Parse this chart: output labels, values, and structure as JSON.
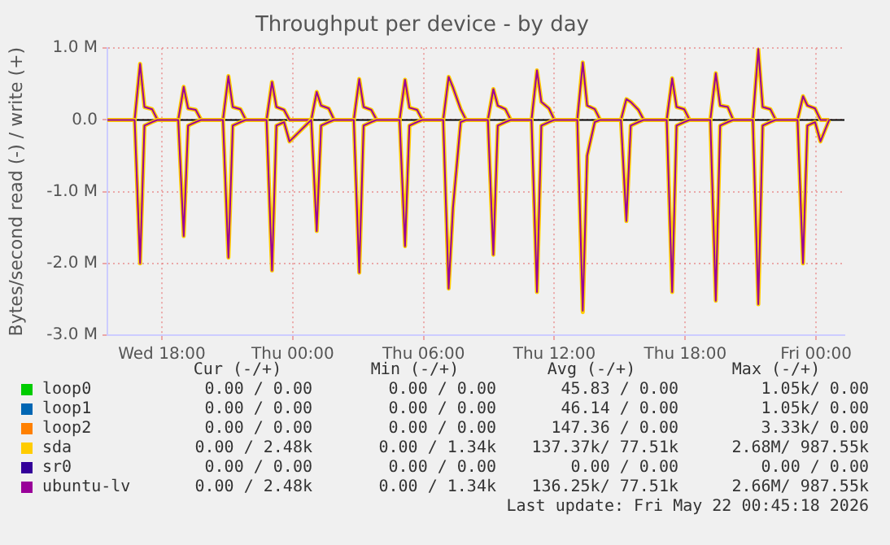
{
  "chart_data": {
    "type": "line",
    "title": "Throughput per device - by day",
    "ylabel": "Bytes/second read (-) / write (+)",
    "x": [
      "2026-05-20T15:30",
      "2026-05-20T16:45",
      "2026-05-20T17:00",
      "2026-05-20T17:12",
      "2026-05-20T17:33",
      "2026-05-20T17:48",
      "2026-05-20T18:45",
      "2026-05-20T19:00",
      "2026-05-20T19:12",
      "2026-05-20T19:33",
      "2026-05-20T19:48",
      "2026-05-20T20:48",
      "2026-05-20T21:03",
      "2026-05-20T21:15",
      "2026-05-20T21:36",
      "2026-05-20T21:51",
      "2026-05-20T22:48",
      "2026-05-20T23:03",
      "2026-05-20T23:15",
      "2026-05-20T23:36",
      "2026-05-20T23:51",
      "2026-05-21T00:51",
      "2026-05-21T01:06",
      "2026-05-21T01:18",
      "2026-05-21T01:39",
      "2026-05-21T01:54",
      "2026-05-21T02:48",
      "2026-05-21T03:03",
      "2026-05-21T03:15",
      "2026-05-21T03:36",
      "2026-05-21T03:51",
      "2026-05-21T04:54",
      "2026-05-21T05:09",
      "2026-05-21T05:21",
      "2026-05-21T05:42",
      "2026-05-21T05:57",
      "2026-05-21T06:54",
      "2026-05-21T07:09",
      "2026-05-21T07:21",
      "2026-05-21T07:42",
      "2026-05-21T07:57",
      "2026-05-21T08:57",
      "2026-05-21T09:12",
      "2026-05-21T09:24",
      "2026-05-21T09:45",
      "2026-05-21T10:00",
      "2026-05-21T10:57",
      "2026-05-21T11:12",
      "2026-05-21T11:24",
      "2026-05-21T11:45",
      "2026-05-21T12:00",
      "2026-05-21T13:03",
      "2026-05-21T13:18",
      "2026-05-21T13:30",
      "2026-05-21T13:51",
      "2026-05-21T14:06",
      "2026-05-21T15:03",
      "2026-05-21T15:18",
      "2026-05-21T15:30",
      "2026-05-21T15:51",
      "2026-05-21T16:06",
      "2026-05-21T17:09",
      "2026-05-21T17:24",
      "2026-05-21T17:36",
      "2026-05-21T17:57",
      "2026-05-21T18:12",
      "2026-05-21T19:09",
      "2026-05-21T19:24",
      "2026-05-21T19:36",
      "2026-05-21T19:57",
      "2026-05-21T20:12",
      "2026-05-21T21:06",
      "2026-05-21T21:21",
      "2026-05-21T21:33",
      "2026-05-21T21:54",
      "2026-05-21T22:09",
      "2026-05-21T23:09",
      "2026-05-21T23:24",
      "2026-05-21T23:36",
      "2026-05-21T23:57",
      "2026-05-22T00:12",
      "2026-05-22T00:36"
    ],
    "xlim": [
      "2026-05-20T15:30",
      "2026-05-22T01:18"
    ],
    "xticks": [
      {
        "value": "2026-05-20T18:00",
        "label": "Wed 18:00"
      },
      {
        "value": "2026-05-21T00:00",
        "label": "Thu 00:00"
      },
      {
        "value": "2026-05-21T06:00",
        "label": "Thu 06:00"
      },
      {
        "value": "2026-05-21T12:00",
        "label": "Thu 12:00"
      },
      {
        "value": "2026-05-21T18:00",
        "label": "Thu 18:00"
      },
      {
        "value": "2026-05-22T00:00",
        "label": "Fri 00:00"
      }
    ],
    "ylim": [
      -3,
      1
    ],
    "yticks": [
      {
        "value": -3,
        "label": "-3.0 M"
      },
      {
        "value": -2,
        "label": "-2.0 M"
      },
      {
        "value": -1,
        "label": "-1.0 M"
      },
      {
        "value": 0,
        "label": "0.0"
      },
      {
        "value": 1,
        "label": "1.0 M"
      }
    ],
    "grid": true,
    "legend": "bottom",
    "marker": "none",
    "ref_lines": [
      {
        "axis": "y",
        "value": 0,
        "color": "#000000"
      }
    ],
    "series": [
      {
        "name": "loop0",
        "color": "#00cc00",
        "values": [
          null,
          null,
          null,
          null,
          null,
          null,
          null,
          null,
          null,
          null,
          null,
          null,
          null,
          null,
          null,
          null,
          null,
          null,
          null,
          null,
          null,
          null,
          null,
          null,
          null,
          null,
          null,
          null,
          null,
          null,
          null,
          null,
          null,
          null,
          null,
          null,
          null,
          null,
          null,
          null,
          null,
          null,
          null,
          null,
          null,
          null,
          null,
          null,
          null,
          null,
          null,
          null,
          null,
          null,
          null,
          null,
          null,
          null,
          null,
          null,
          null,
          null,
          null,
          null,
          null,
          null,
          null,
          null,
          null,
          null,
          null,
          null,
          null,
          null,
          null,
          null,
          null,
          null,
          null,
          null,
          null,
          null
        ]
      },
      {
        "name": "loop1",
        "color": "#0066b3",
        "values": [
          null,
          null,
          null,
          null,
          null,
          null,
          null,
          null,
          null,
          null,
          null,
          null,
          null,
          null,
          null,
          null,
          null,
          null,
          null,
          null,
          null,
          null,
          null,
          null,
          null,
          null,
          null,
          null,
          null,
          null,
          null,
          null,
          null,
          null,
          null,
          null,
          null,
          null,
          null,
          null,
          null,
          null,
          null,
          null,
          null,
          null,
          null,
          null,
          null,
          null,
          null,
          null,
          null,
          null,
          null,
          null,
          null,
          null,
          null,
          null,
          null,
          null,
          null,
          null,
          null,
          null,
          null,
          null,
          null,
          null,
          null,
          null,
          null,
          null,
          null,
          null,
          null,
          null,
          null,
          null,
          null,
          null
        ]
      },
      {
        "name": "loop2",
        "color": "#ff8000",
        "values": [
          null,
          null,
          null,
          null,
          null,
          null,
          null,
          null,
          null,
          null,
          null,
          null,
          null,
          null,
          null,
          null,
          null,
          null,
          null,
          null,
          null,
          null,
          null,
          null,
          null,
          null,
          null,
          null,
          null,
          null,
          null,
          null,
          null,
          null,
          null,
          null,
          null,
          null,
          null,
          null,
          null,
          null,
          null,
          null,
          null,
          null,
          null,
          null,
          null,
          null,
          null,
          null,
          null,
          null,
          null,
          null,
          null,
          null,
          null,
          null,
          null,
          null,
          null,
          null,
          null,
          null,
          null,
          null,
          null,
          null,
          null,
          null,
          null,
          null,
          null,
          null,
          null,
          null,
          null,
          null,
          null,
          null
        ]
      },
      {
        "name": "sda",
        "color": "#ffcc00",
        "values": [
          0,
          0,
          0.78,
          0.18,
          0.15,
          0,
          0,
          0.46,
          0.16,
          0.14,
          0,
          0,
          0.61,
          0.18,
          0.15,
          0,
          0,
          0.53,
          0.18,
          0.14,
          0,
          0,
          0.39,
          0.2,
          0.16,
          0,
          0,
          0.57,
          0.18,
          0.14,
          0,
          0,
          0.56,
          0.17,
          0.14,
          0,
          0,
          0.6,
          0.45,
          0.15,
          0,
          0,
          0.43,
          0.2,
          0.15,
          0,
          0,
          0.69,
          0.25,
          0.16,
          0,
          0,
          0.8,
          0.2,
          0.15,
          0,
          0,
          0.29,
          0.25,
          0.14,
          0,
          0,
          0.58,
          0.18,
          0.15,
          0,
          0,
          0.65,
          0.2,
          0.18,
          0,
          0,
          0.99,
          0.18,
          0.15,
          0,
          0,
          0.33,
          0.2,
          0.16,
          0,
          0
        ]
      },
      {
        "name": "sr0",
        "color": "#330099",
        "values": [
          null,
          null,
          null,
          null,
          null,
          null,
          null,
          null,
          null,
          null,
          null,
          null,
          null,
          null,
          null,
          null,
          null,
          null,
          null,
          null,
          null,
          null,
          null,
          null,
          null,
          null,
          null,
          null,
          null,
          null,
          null,
          null,
          null,
          null,
          null,
          null,
          null,
          null,
          null,
          null,
          null,
          null,
          null,
          null,
          null,
          null,
          null,
          null,
          null,
          null,
          null,
          null,
          null,
          null,
          null,
          null,
          null,
          null,
          null,
          null,
          null,
          null,
          null,
          null,
          null,
          null,
          null,
          null,
          null,
          null,
          null,
          null,
          null,
          null,
          null,
          null,
          null,
          null,
          null,
          null,
          null,
          null
        ]
      },
      {
        "name": "ubuntu-lv",
        "color": "#990099",
        "values": [
          0,
          0,
          0.78,
          0.18,
          0.15,
          0,
          0,
          0.46,
          0.16,
          0.14,
          0,
          0,
          0.61,
          0.18,
          0.15,
          0,
          0,
          0.53,
          0.18,
          0.14,
          0,
          0,
          0.39,
          0.2,
          0.16,
          0,
          0,
          0.57,
          0.18,
          0.14,
          0,
          0,
          0.56,
          0.17,
          0.14,
          0,
          0,
          0.6,
          0.45,
          0.15,
          0,
          0,
          0.43,
          0.2,
          0.15,
          0,
          0,
          0.69,
          0.25,
          0.16,
          0,
          0,
          0.8,
          0.2,
          0.15,
          0,
          0,
          0.29,
          0.25,
          0.14,
          0,
          0,
          0.58,
          0.18,
          0.15,
          0,
          0,
          0.65,
          0.2,
          0.18,
          0,
          0,
          0.99,
          0.18,
          0.15,
          0,
          0,
          0.33,
          0.2,
          0.16,
          0,
          0
        ]
      },
      {
        "color": "#ffcc00",
        "values": [
          0,
          0,
          -2.0,
          -0.08,
          -0.03,
          0,
          0,
          -1.62,
          -0.08,
          -0.03,
          0,
          0,
          -1.92,
          -0.08,
          -0.03,
          0,
          0,
          -2.1,
          -0.08,
          -0.03,
          -0.3,
          0,
          -1.55,
          -0.08,
          -0.03,
          0,
          0,
          -2.13,
          -0.08,
          -0.03,
          0,
          0,
          -1.76,
          -0.08,
          -0.03,
          0,
          0,
          -2.35,
          -1.22,
          -0.03,
          0,
          0,
          -1.88,
          -0.08,
          -0.03,
          0,
          0,
          -2.4,
          -0.08,
          -0.03,
          0,
          0,
          -2.68,
          -0.5,
          -0.03,
          0,
          0,
          -1.41,
          -0.08,
          -0.03,
          0,
          0,
          -2.4,
          -0.08,
          -0.03,
          0,
          0,
          -2.52,
          -0.08,
          -0.03,
          0,
          0,
          -2.57,
          -0.08,
          -0.03,
          0,
          0,
          -2.0,
          -0.08,
          -0.03,
          -0.3,
          0
        ]
      },
      {
        "color": "#990099",
        "values": [
          0,
          0,
          -2.0,
          -0.08,
          -0.03,
          0,
          0,
          -1.62,
          -0.08,
          -0.03,
          0,
          0,
          -1.92,
          -0.08,
          -0.03,
          0,
          0,
          -2.1,
          -0.08,
          -0.03,
          -0.3,
          0,
          -1.55,
          -0.08,
          -0.03,
          0,
          0,
          -2.13,
          -0.08,
          -0.03,
          0,
          0,
          -1.76,
          -0.08,
          -0.03,
          0,
          0,
          -2.35,
          -1.22,
          -0.03,
          0,
          0,
          -1.88,
          -0.08,
          -0.03,
          0,
          0,
          -2.4,
          -0.08,
          -0.03,
          0,
          0,
          -2.66,
          -0.5,
          -0.03,
          0,
          0,
          -1.41,
          -0.08,
          -0.03,
          0,
          0,
          -2.4,
          -0.08,
          -0.03,
          0,
          0,
          -2.52,
          -0.08,
          -0.03,
          0,
          0,
          -2.57,
          -0.08,
          -0.03,
          0,
          0,
          -2.0,
          -0.08,
          -0.03,
          -0.3,
          0
        ]
      }
    ],
    "annotations": [
      "Cur (-/+)",
      "Min (-/+)",
      "Avg (-/+)",
      "Max (-/+)",
      "0.00 / 0.00",
      "0.00 / 0.00",
      "45.83 / 0.00",
      "1.05k/ 0.00",
      "0.00 / 0.00",
      "0.00 / 0.00",
      "46.14 / 0.00",
      "1.05k/ 0.00",
      "0.00 / 0.00",
      "0.00 / 0.00",
      "147.36 / 0.00",
      "3.33k/ 0.00",
      "0.00 / 2.48k",
      "0.00 / 1.34k",
      "137.37k/ 77.51k",
      "2.68M/ 987.55k",
      "0.00 / 0.00",
      "0.00 / 0.00",
      "0.00 / 0.00",
      "0.00 / 0.00",
      "0.00 / 2.48k",
      "0.00 / 1.34k",
      "136.25k/ 77.51k",
      "2.66M/ 987.55k",
      "Last update: Fri May 22 00:45:18 2026"
    ]
  }
}
